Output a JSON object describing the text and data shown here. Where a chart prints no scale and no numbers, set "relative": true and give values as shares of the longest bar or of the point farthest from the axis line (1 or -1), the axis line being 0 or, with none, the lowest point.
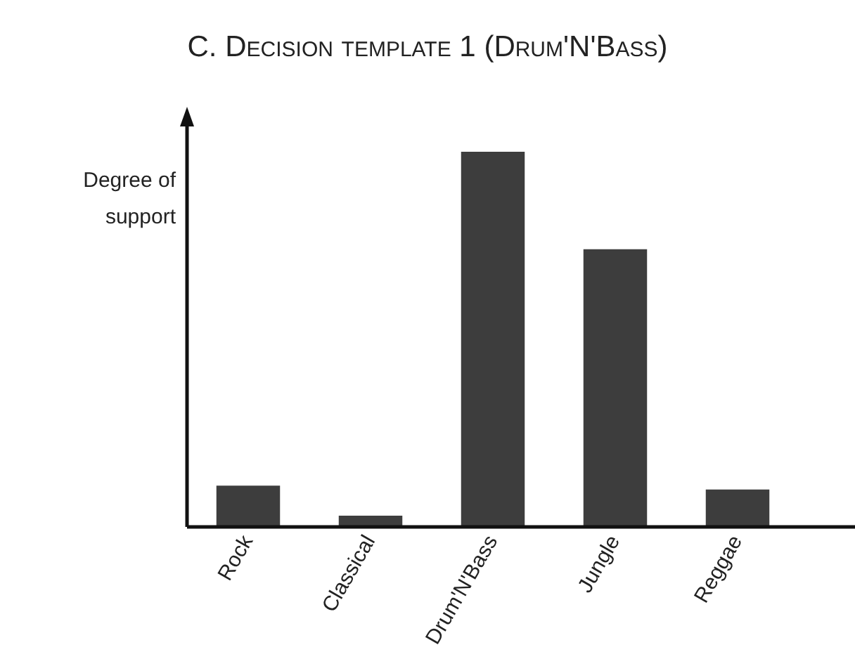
{
  "chart_data": {
    "type": "bar",
    "title": "C. Decision template 1 (Drum'N'Bass)",
    "ylabel": "Degree of support",
    "categories": [
      "Rock",
      "Classical",
      "Drum'N'Bass",
      "Jungle",
      "Reggae"
    ],
    "values": [
      0.11,
      0.03,
      1,
      0.74,
      0.1
    ],
    "color": "#3d3d3d",
    "relative": true,
    "grid": false,
    "legend": false
  }
}
